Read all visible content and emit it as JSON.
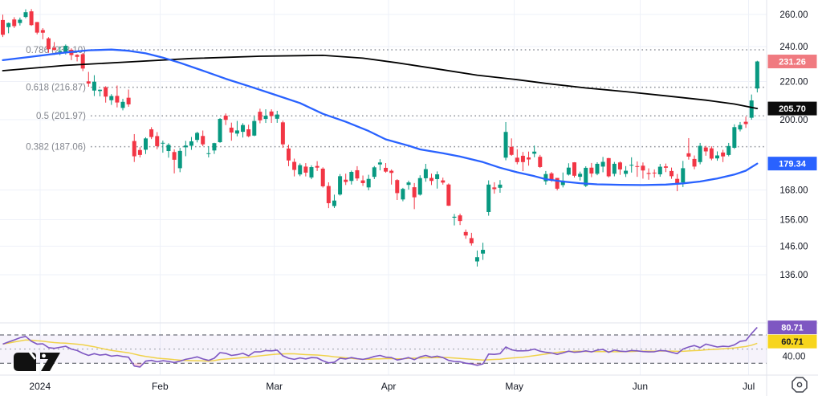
{
  "app": {
    "logo_icon": "tradingview-logo-icon",
    "scale_settings_icon": "octagon-dot-icon"
  },
  "colors": {
    "background": "#ffffff",
    "grid": "#eef1f8",
    "separator": "#e0e3eb",
    "axis_text": "#131722",
    "candle_up": "#089981",
    "candle_down": "#f23645",
    "ma_black": "#000000",
    "ma_blue": "#2962ff",
    "fib_line": "#8f939b",
    "fib_text": "#82858d",
    "rsi_line": "#7e57c2",
    "rsi_ma_line": "#f0d24a",
    "rsi_band_fill": "rgba(126,87,194,0.07)",
    "rsi_level_dash": "#4a4e59",
    "rsi_mid_dash": "#9b9fa8",
    "rsi_oversold_fill": "rgba(236,64,90,0.22)",
    "badge_last_price_bg": "#f07a80",
    "badge_black_bg": "#0b0b0b",
    "badge_blue_bg": "#2962ff",
    "badge_purple_bg": "#7e57c2",
    "badge_yellow_bg": "#f7d51d"
  },
  "price_axis": {
    "ticks": [
      {
        "label": "260.00",
        "value": 260.0
      },
      {
        "label": "240.00",
        "value": 240.0
      },
      {
        "label": "220.00",
        "value": 220.0
      },
      {
        "label": "200.00",
        "value": 200.0
      },
      {
        "label": "168.00",
        "value": 168.0
      },
      {
        "label": "156.00",
        "value": 156.0
      },
      {
        "label": "146.00",
        "value": 146.0
      },
      {
        "label": "136.00",
        "value": 136.0
      }
    ],
    "badges": [
      {
        "name": "last-price-badge",
        "label": "231.26",
        "value": 231.26,
        "bg": "badge_last_price_bg",
        "fg": "#ffffff",
        "pane": "price"
      },
      {
        "name": "black-ma-badge",
        "label": "205.70",
        "value": 205.7,
        "bg": "badge_black_bg",
        "fg": "#ffffff",
        "pane": "price"
      },
      {
        "name": "blue-ma-badge",
        "label": "179.34",
        "value": 179.34,
        "bg": "badge_blue_bg",
        "fg": "#ffffff",
        "pane": "price"
      },
      {
        "name": "rsi-badge",
        "label": "80.71",
        "value": 80.71,
        "bg": "badge_purple_bg",
        "fg": "#ffffff",
        "pane": "rsi"
      },
      {
        "name": "rsi-ma-badge",
        "label": "60.71",
        "value": 60.71,
        "bg": "badge_yellow_bg",
        "fg": "#131722",
        "pane": "rsi"
      }
    ],
    "rsi_ticks": [
      {
        "label": "40.00",
        "value": 40
      }
    ]
  },
  "time_axis": {
    "labels": [
      {
        "text": "2024",
        "first_index": 7
      },
      {
        "text": "Feb",
        "first_index": 28
      },
      {
        "text": "Mar",
        "first_index": 48
      },
      {
        "text": "Apr",
        "first_index": 68
      },
      {
        "text": "May",
        "first_index": 90
      },
      {
        "text": "Jun",
        "first_index": 112
      },
      {
        "text": "Jul",
        "first_index": 131
      }
    ]
  },
  "chart_data": {
    "type": "candlestick",
    "x_axis": "daily bars, months labeled 2024(Jan)-Jul",
    "price_axis_range_visible": [
      128,
      266
    ],
    "scale": "log",
    "grid": true,
    "legend_position": "none",
    "fib_levels": [
      {
        "label": "0.786 (238.10)",
        "value": 238.1
      },
      {
        "label": "0.618 (216.87)",
        "value": 216.87
      },
      {
        "label": "0.5 (201.97)",
        "value": 201.97
      },
      {
        "label": "0.382 (187.06)",
        "value": 187.06
      }
    ],
    "candles_ohlc": [
      [
        256.41,
        259.84,
        245.77,
        247.14
      ],
      [
        251.9,
        254.8,
        248.1,
        254.5
      ],
      [
        256.76,
        258.22,
        251.37,
        252.54
      ],
      [
        254.49,
        257.97,
        252.91,
        256.61
      ],
      [
        258.35,
        263.34,
        257.52,
        261.44
      ],
      [
        262.0,
        263.5,
        252.71,
        253.18
      ],
      [
        255.1,
        255.19,
        247.43,
        248.48
      ],
      [
        250.08,
        251.25,
        244.41,
        248.42
      ],
      [
        244.98,
        245.68,
        236.32,
        238.45
      ],
      [
        239.25,
        242.7,
        237.73,
        237.93
      ],
      [
        236.86,
        240.12,
        234.9,
        237.49
      ],
      [
        236.14,
        241.25,
        235.3,
        240.45
      ],
      [
        238.11,
        238.96,
        232.04,
        234.96
      ],
      [
        235.1,
        235.5,
        231.29,
        233.94
      ],
      [
        235.48,
        236.18,
        225.77,
        227.22
      ],
      [
        220.08,
        225.34,
        217.15,
        218.89
      ],
      [
        215.1,
        223.49,
        212.18,
        219.91
      ],
      [
        214.86,
        215.67,
        212.01,
        215.55
      ],
      [
        216.88,
        217.45,
        208.74,
        211.88
      ],
      [
        209.99,
        213.19,
        207.56,
        212.19
      ],
      [
        212.26,
        217.8,
        206.27,
        208.8
      ],
      [
        206.0,
        210.7,
        204.75,
        209.14
      ],
      [
        211.3,
        215.65,
        206.59,
        207.83
      ],
      [
        189.7,
        193.0,
        180.06,
        182.63
      ],
      [
        185.5,
        186.78,
        182.1,
        183.25
      ],
      [
        185.63,
        191.48,
        183.67,
        190.93
      ],
      [
        195.33,
        196.36,
        190.61,
        191.59
      ],
      [
        192.04,
        193.97,
        185.85,
        187.29
      ],
      [
        188.5,
        189.88,
        184.28,
        188.86
      ],
      [
        185.04,
        188.69,
        182.0,
        187.91
      ],
      [
        184.57,
        185.82,
        175.01,
        181.06
      ],
      [
        177.29,
        186.5,
        175.53,
        185.1
      ],
      [
        186.77,
        189.79,
        182.67,
        187.58
      ],
      [
        187.47,
        191.62,
        185.58,
        189.56
      ],
      [
        190.23,
        194.12,
        189.03,
        193.57
      ],
      [
        192.11,
        194.73,
        187.28,
        188.13
      ],
      [
        183.99,
        187.26,
        182.11,
        184.02
      ],
      [
        185.3,
        188.89,
        183.7,
        188.71
      ],
      [
        189.16,
        200.88,
        188.86,
        200.45
      ],
      [
        202.06,
        203.17,
        197.4,
        199.95
      ],
      [
        196.13,
        198.6,
        189.85,
        193.76
      ],
      [
        193.25,
        199.44,
        191.94,
        194.77
      ],
      [
        194.1,
        198.32,
        191.36,
        197.41
      ],
      [
        195.31,
        197.57,
        191.5,
        191.97
      ],
      [
        192.29,
        201.78,
        192.0,
        199.4
      ],
      [
        204.04,
        205.6,
        198.26,
        199.73
      ],
      [
        200.42,
        205.3,
        198.44,
        202.04
      ],
      [
        204.18,
        205.28,
        198.45,
        201.88
      ],
      [
        200.52,
        204.52,
        198.5,
        202.64
      ],
      [
        198.73,
        199.57,
        186.51,
        188.14
      ],
      [
        186.21,
        188.0,
        178.21,
        180.74
      ],
      [
        180.1,
        181.58,
        173.7,
        176.54
      ],
      [
        174.55,
        179.43,
        173.8,
        178.65
      ],
      [
        178.0,
        179.55,
        173.69,
        175.34
      ],
      [
        173.26,
        178.57,
        172.5,
        177.77
      ],
      [
        178.26,
        180.42,
        176.06,
        177.54
      ],
      [
        177.09,
        177.68,
        168.95,
        169.48
      ],
      [
        169.6,
        171.17,
        160.51,
        162.5
      ],
      [
        161.35,
        165.99,
        160.56,
        163.57
      ],
      [
        166.05,
        174.72,
        165.6,
        173.8
      ],
      [
        172.29,
        174.89,
        170.03,
        171.32
      ],
      [
        171.75,
        176.25,
        170.21,
        175.66
      ],
      [
        176.39,
        178.18,
        171.84,
        172.82
      ],
      [
        171.99,
        174.1,
        169.63,
        170.83
      ],
      [
        169.01,
        174.42,
        167.8,
        172.63
      ],
      [
        173.51,
        178.25,
        172.55,
        177.67
      ],
      [
        178.95,
        181.34,
        176.34,
        179.83
      ],
      [
        177.45,
        179.57,
        175.3,
        175.79
      ],
      [
        176.17,
        176.75,
        170.21,
        175.22
      ],
      [
        172.12,
        172.52,
        163.79,
        166.63
      ],
      [
        164.02,
        168.82,
        163.28,
        168.38
      ],
      [
        170.07,
        171.88,
        168.1,
        171.11
      ],
      [
        169.08,
        170.87,
        160.11,
        164.9
      ],
      [
        166.0,
        174.19,
        165.6,
        172.98
      ],
      [
        172.91,
        179.22,
        171.41,
        176.88
      ],
      [
        173.04,
        174.93,
        170.01,
        171.76
      ],
      [
        172.55,
        175.88,
        168.51,
        174.6
      ],
      [
        171.99,
        173.17,
        170.17,
        171.05
      ],
      [
        170.24,
        170.69,
        161.38,
        161.48
      ],
      [
        156.74,
        158.19,
        153.75,
        157.11
      ],
      [
        157.64,
        158.33,
        153.89,
        155.45
      ],
      [
        151.25,
        152.2,
        148.7,
        149.93
      ],
      [
        148.97,
        150.94,
        146.22,
        147.05
      ],
      [
        140.56,
        144.44,
        138.8,
        142.05
      ],
      [
        143.33,
        147.26,
        141.11,
        144.68
      ],
      [
        158.96,
        172.0,
        157.51,
        170.2
      ],
      [
        169.0,
        171.19,
        166.4,
        168.29
      ],
      [
        168.85,
        172.12,
        166.77,
        170.18
      ],
      [
        182.0,
        198.87,
        180.8,
        194.05
      ],
      [
        186.98,
        190.95,
        182.84,
        183.28
      ],
      [
        182.0,
        185.86,
        179.01,
        179.99
      ],
      [
        182.86,
        184.6,
        176.02,
        180.01
      ],
      [
        182.1,
        184.78,
        178.42,
        181.19
      ],
      [
        183.8,
        187.56,
        182.2,
        184.76
      ],
      [
        182.4,
        183.26,
        177.4,
        177.81
      ],
      [
        171.59,
        176.06,
        170.15,
        174.72
      ],
      [
        175.01,
        175.62,
        171.37,
        171.97
      ],
      [
        173.05,
        173.06,
        167.75,
        168.47
      ],
      [
        170.0,
        175.4,
        169.0,
        171.89
      ],
      [
        174.5,
        179.49,
        174.07,
        177.55
      ],
      [
        179.9,
        180.0,
        173.21,
        173.99
      ],
      [
        173.55,
        175.79,
        171.93,
        174.84
      ],
      [
        169.69,
        178.15,
        169.15,
        177.46
      ],
      [
        177.53,
        179.62,
        173.38,
        174.95
      ],
      [
        174.84,
        179.94,
        174.21,
        179.24
      ],
      [
        178.0,
        182.33,
        175.51,
        180.11
      ],
      [
        181.8,
        181.9,
        173.26,
        173.74
      ],
      [
        174.84,
        180.08,
        173.73,
        179.24
      ],
      [
        179.85,
        180.32,
        174.37,
        176.75
      ],
      [
        174.81,
        178.22,
        173.45,
        176.19
      ],
      [
        178.57,
        182.17,
        175.37,
        178.79
      ],
      [
        178.21,
        180.31,
        173.52,
        178.08
      ],
      [
        178.4,
        179.85,
        172.73,
        176.29
      ],
      [
        175.2,
        177.23,
        172.27,
        174.77
      ],
      [
        175.35,
        176.75,
        173.21,
        175.0
      ],
      [
        174.6,
        179.19,
        173.56,
        177.94
      ],
      [
        178.1,
        179.35,
        175.58,
        177.48
      ],
      [
        176.06,
        177.57,
        172.67,
        173.79
      ],
      [
        172.65,
        174.75,
        167.42,
        170.66
      ],
      [
        171.12,
        180.55,
        169.15,
        177.29
      ],
      [
        184.0,
        191.08,
        181.11,
        182.47
      ],
      [
        181.42,
        183.0,
        176.81,
        178.01
      ],
      [
        180.01,
        188.81,
        179.01,
        187.44
      ],
      [
        186.67,
        187.45,
        182.88,
        184.86
      ],
      [
        186.29,
        187.2,
        180.82,
        181.57
      ],
      [
        181.67,
        184.85,
        180.6,
        183.01
      ],
      [
        184.35,
        185.6,
        180.01,
        182.58
      ],
      [
        183.24,
        188.81,
        182.61,
        187.35
      ],
      [
        186.54,
        197.76,
        186.0,
        196.37
      ],
      [
        195.25,
        198.9,
        194.3,
        197.42
      ],
      [
        199.02,
        201.6,
        196.0,
        197.88
      ],
      [
        201.02,
        213.0,
        200.05,
        209.86
      ],
      [
        216.2,
        231.67,
        214.11,
        231.26
      ]
    ],
    "overlays": [
      {
        "name": "black-ma-line",
        "color_key": "ma_black",
        "width": 1.8,
        "points": [
          [
            0,
            226
          ],
          [
            11,
            229
          ],
          [
            22,
            231
          ],
          [
            33,
            233
          ],
          [
            45,
            234.3
          ],
          [
            56,
            234.8
          ],
          [
            63,
            233.2
          ],
          [
            69,
            230.5
          ],
          [
            76,
            227
          ],
          [
            83,
            223.5
          ],
          [
            90,
            221
          ],
          [
            95,
            219
          ],
          [
            102,
            216.5
          ],
          [
            109,
            214.5
          ],
          [
            116,
            212.3
          ],
          [
            123,
            210
          ],
          [
            128,
            208
          ],
          [
            132,
            205.7
          ]
        ]
      },
      {
        "name": "blue-ma-line",
        "color_key": "ma_blue",
        "width": 2.3,
        "points": [
          [
            0,
            232
          ],
          [
            5,
            234
          ],
          [
            11,
            236.5
          ],
          [
            15,
            237.8
          ],
          [
            19,
            238.2
          ],
          [
            22,
            237.5
          ],
          [
            25,
            236
          ],
          [
            28,
            233.5
          ],
          [
            31,
            230.5
          ],
          [
            35,
            226
          ],
          [
            39,
            221.5
          ],
          [
            43,
            217.5
          ],
          [
            47,
            213.5
          ],
          [
            52,
            208.5
          ],
          [
            56,
            203
          ],
          [
            60,
            199
          ],
          [
            64,
            194.5
          ],
          [
            67,
            190.5
          ],
          [
            71,
            187.5
          ],
          [
            73,
            185.8
          ],
          [
            77,
            184
          ],
          [
            80,
            182.5
          ],
          [
            84,
            180
          ],
          [
            87,
            177.5
          ],
          [
            90,
            175.5
          ],
          [
            93,
            173.8
          ],
          [
            95,
            172.5
          ],
          [
            98,
            171.5
          ],
          [
            101,
            170.8
          ],
          [
            104,
            170.3
          ],
          [
            108,
            170.1
          ],
          [
            112,
            170
          ],
          [
            116,
            170.2
          ],
          [
            119,
            170.7
          ],
          [
            122,
            171.5
          ],
          [
            125,
            172.8
          ],
          [
            128,
            174.5
          ],
          [
            130,
            176.2
          ],
          [
            132,
            179.34
          ]
        ]
      }
    ],
    "rsi_pane": {
      "levels": {
        "upper": 70,
        "middle": 50,
        "lower": 30
      },
      "ma_window": 14,
      "last_rsi": 80.71,
      "last_rsi_ma": 60.71,
      "values": [
        57,
        60,
        63,
        66,
        68,
        61,
        57,
        57.5,
        52,
        51,
        52.5,
        54,
        50,
        48,
        44,
        41,
        43.5,
        41.5,
        42.5,
        40,
        41,
        39.5,
        38.5,
        26,
        24.5,
        33,
        34,
        32,
        33.5,
        32.5,
        31,
        33,
        35.5,
        37,
        39,
        36,
        34,
        37,
        45,
        44,
        41,
        42,
        44,
        40.5,
        46,
        46,
        48,
        47.5,
        48.5,
        40.5,
        37,
        35.5,
        37.5,
        36,
        38,
        37.5,
        33.5,
        30.5,
        31.5,
        37,
        36,
        38,
        36.5,
        35.5,
        37,
        39.5,
        41,
        38.5,
        38,
        34.5,
        36,
        38,
        35,
        39,
        41,
        38.5,
        40,
        38,
        34,
        32.5,
        32,
        30,
        29,
        27,
        29,
        43,
        42.5,
        43.5,
        53,
        49,
        47.5,
        47.5,
        48,
        50,
        47,
        45.5,
        44.5,
        42.5,
        44.5,
        47,
        45.5,
        46,
        47.5,
        46,
        48.5,
        49.5,
        45.5,
        48.5,
        47,
        46.5,
        48,
        47.5,
        46.5,
        46,
        46.2,
        48,
        47.5,
        45.5,
        43.5,
        50,
        53,
        55,
        52,
        57,
        55,
        53,
        54,
        53.5,
        56,
        61,
        62,
        72,
        80.71
      ]
    }
  }
}
